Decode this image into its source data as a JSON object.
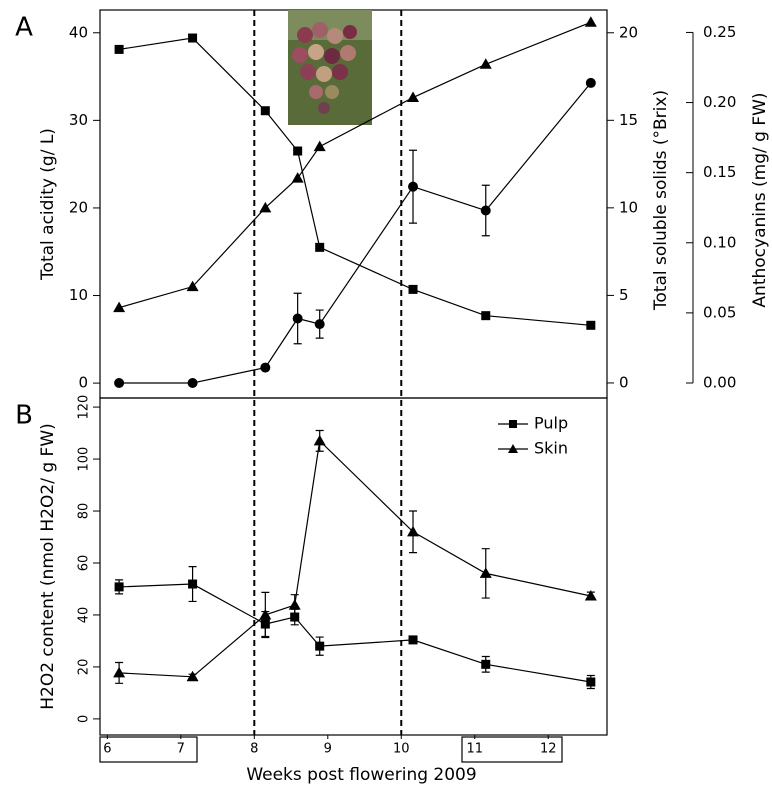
{
  "chart_data": [
    {
      "type": "line",
      "panel_label": "A",
      "ylabel": "Total acidity (g/ L)",
      "y2label": "Total soluble solids (°Brix)",
      "y3label": "Anthocyanins (mg/ g FW)",
      "x": [
        6.16,
        7.16,
        8.15,
        8.59,
        8.89,
        10.16,
        11.15,
        12.58
      ],
      "xlim": [
        5.9,
        12.8
      ],
      "ylim": [
        -1.7,
        42.6
      ],
      "yticks": [
        0,
        10,
        20,
        30,
        40
      ],
      "y2lim": [
        -0.86,
        21.3
      ],
      "y2ticks": [
        0,
        5,
        10,
        15,
        20
      ],
      "y3lim": [
        -0.0107,
        0.266
      ],
      "y3ticks": [
        {
          "value": 0,
          "label": "0.00"
        },
        {
          "value": 0.05,
          "label": "0.05"
        },
        {
          "value": 0.1,
          "label": "0.10"
        },
        {
          "value": 0.15,
          "label": "0.15"
        },
        {
          "value": 0.2,
          "label": "0.20"
        },
        {
          "value": 0.25,
          "label": "0.25"
        }
      ],
      "vlines": [
        8,
        10
      ],
      "series": [
        {
          "marker": "square",
          "color": "#000000",
          "axis": "y",
          "values": [
            38.1,
            39.4,
            31.1,
            26.5,
            15.5,
            10.7,
            7.7,
            6.6
          ]
        },
        {
          "marker": "triangle",
          "color": "#000000",
          "axis": "y2",
          "values": [
            4.3,
            5.5,
            10.0,
            11.7,
            13.5,
            16.3,
            18.2,
            20.6
          ]
        },
        {
          "marker": "circle",
          "color": "#000000",
          "axis": "y3",
          "values": [
            0,
            0,
            0.011,
            0.046,
            0.042,
            0.14,
            0.123,
            0.214
          ],
          "errors": [
            null,
            null,
            null,
            0.018,
            0.01,
            0.026,
            0.018,
            null
          ]
        }
      ]
    },
    {
      "type": "line",
      "panel_label": "B",
      "ylabel": "H2O2 content (nmol H2O2/ g FW)",
      "xlabel": "Weeks post flowering 2009",
      "x": [
        6.16,
        7.16,
        8.15,
        8.55,
        8.89,
        10.16,
        11.15,
        12.58
      ],
      "xlim": [
        5.9,
        12.8
      ],
      "xticks": [
        6,
        7,
        8,
        9,
        10,
        11,
        12
      ],
      "ylim": [
        -6.2,
        123.5
      ],
      "yticks": [
        0,
        20,
        40,
        60,
        80,
        100,
        120
      ],
      "legend": "top-right",
      "series": [
        {
          "name": "Pulp",
          "marker": "square",
          "color": "#000000",
          "values": [
            50.8,
            51.9,
            36.5,
            39.2,
            28,
            30.4,
            21,
            14.2
          ],
          "errors": [
            2.7,
            6.7,
            4.8,
            3,
            3.5,
            1,
            3,
            2.5
          ]
        },
        {
          "name": "Skin",
          "marker": "triangle",
          "color": "#000000",
          "values": [
            17.7,
            16.2,
            40,
            43.8,
            107,
            72,
            56,
            47.3
          ],
          "errors": [
            4,
            1,
            8.7,
            4,
            4,
            8,
            9.5,
            1.5
          ]
        }
      ]
    }
  ]
}
